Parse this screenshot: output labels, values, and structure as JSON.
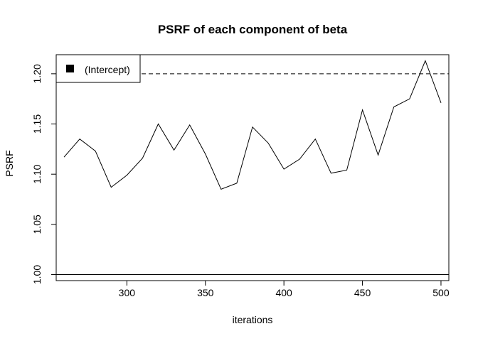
{
  "chart_data": {
    "type": "line",
    "title": "PSRF of each component of beta",
    "xlabel": "iterations",
    "ylabel": "PSRF",
    "xlim": [
      255,
      505
    ],
    "ylim": [
      0.994,
      1.219
    ],
    "x_ticks": [
      300,
      350,
      400,
      450,
      500
    ],
    "y_ticks": [
      1.0,
      1.05,
      1.1,
      1.15,
      1.2
    ],
    "x_tick_labels": [
      "300",
      "350",
      "400",
      "450",
      "500"
    ],
    "y_tick_labels": [
      "1.00",
      "1.05",
      "1.10",
      "1.15",
      "1.20"
    ],
    "series": [
      {
        "name": "(Intercept)",
        "x": [
          260,
          270,
          280,
          290,
          300,
          310,
          320,
          330,
          340,
          350,
          360,
          370,
          380,
          390,
          400,
          410,
          420,
          430,
          440,
          450,
          460,
          470,
          480,
          490,
          500
        ],
        "values": [
          1.117,
          1.135,
          1.123,
          1.087,
          1.099,
          1.116,
          1.15,
          1.124,
          1.149,
          1.12,
          1.085,
          1.091,
          1.147,
          1.131,
          1.105,
          1.115,
          1.135,
          1.101,
          1.104,
          1.164,
          1.119,
          1.167,
          1.175,
          1.213,
          1.171
        ]
      }
    ],
    "reference_lines": [
      {
        "value": 1.2,
        "style": "dashed"
      },
      {
        "value": 1.0,
        "style": "solid"
      }
    ],
    "legend": {
      "position": "top-left",
      "entries": [
        "(Intercept)"
      ]
    },
    "grid": false
  }
}
